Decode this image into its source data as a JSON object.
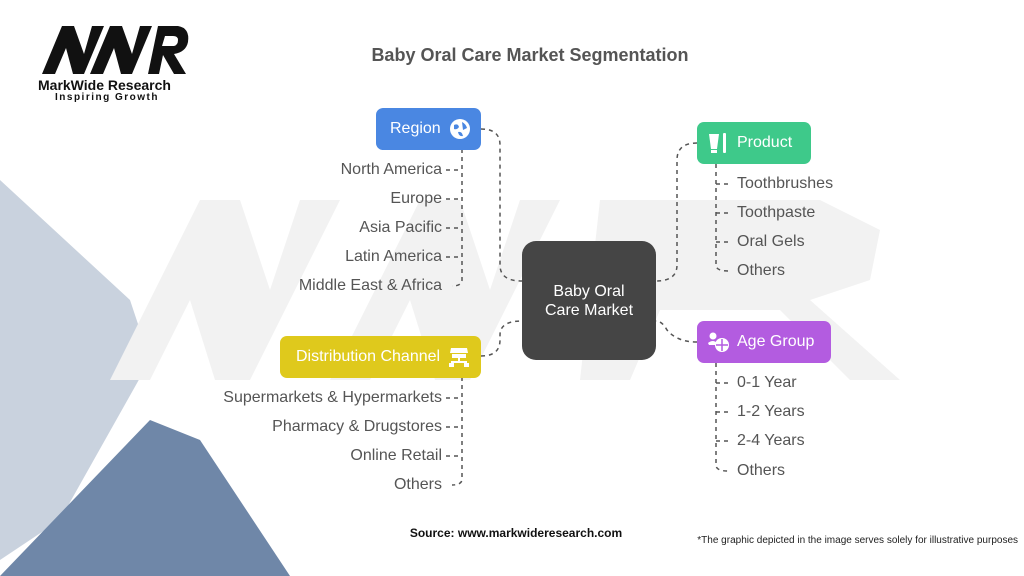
{
  "logo": {
    "mark": "MWR",
    "name": "MarkWide Research",
    "tagline": "Inspiring Growth"
  },
  "title": "Baby Oral Care Market Segmentation",
  "center": {
    "line1": "Baby Oral",
    "line2": "Care Market"
  },
  "categories": [
    {
      "label": "Region",
      "icon": "globe-icon",
      "color": "#4a87e2",
      "items": [
        "North America",
        "Europe",
        "Asia Pacific",
        "Latin America",
        "Middle East & Africa"
      ]
    },
    {
      "label": "Product",
      "icon": "toothpaste-toothbrush-icon",
      "color": "#3ec98a",
      "items": [
        "Toothbrushes",
        "Toothpaste",
        "Oral Gels",
        "Others"
      ]
    },
    {
      "label": "Distribution Channel",
      "icon": "store-network-icon",
      "color": "#dfc91c",
      "items": [
        "Supermarkets & Hypermarkets",
        "Pharmacy & Drugstores",
        "Online Retail",
        "Others"
      ]
    },
    {
      "label": "Age Group",
      "icon": "baby-icon",
      "color": "#b35ce0",
      "items": [
        "0-1 Year",
        "1-2 Years",
        "2-4 Years",
        "Others"
      ]
    }
  ],
  "source": "Source: www.markwideresearch.com",
  "footnote": "*The graphic depicted in the image serves solely for illustrative purposes"
}
